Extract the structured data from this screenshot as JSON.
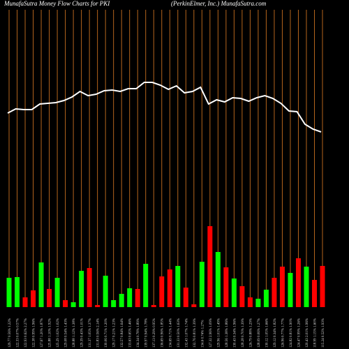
{
  "chart_data": {
    "type": "money-flow",
    "title": "MunafaSutra  Money Flow  Charts for PKI",
    "subtitle": "(PerkinElmer,  Inc.) MunafaSutra.com",
    "background": "#000000",
    "grid": true,
    "grid_color": "#b5651d",
    "categories": [
      "129.77 0.56% 1.22%",
      "122.33 0.07% 0.57%",
      "122.93 0.62% 2.27%",
      "122.38 0.99% 1.96%",
      "127.67 1.20% 1.87%",
      "125.88 1.10% 1.92%",
      "125.29 1.02% 1.02%",
      "129.08 0.54% 1.43%",
      "128.88 1.12% 1.38%",
      "129.39 0.43% 1.01%",
      "131.37 1.05% 1.37%",
      "131.83 0.56% 2.14%",
      "130.06 0.71% 1.20%",
      "129.17 0.21% 1.23%",
      "132.57 0.84% 1.64%",
      "133.63 0.65% 1.46%",
      "134.34 0.78% 1.89%",
      "139.97 0.94% 1.78%",
      "137.13 0.29% 0.95%",
      "136.69 0.96% 1.85%",
      "134.69 0.71% 1.44%",
      "131.33 0.50% 1.63%",
      "132.43 1.07% 1.74%",
      "132.76 0.81% 1.39%",
      "134.6 0.74% 1.27%",
      "127.32 2.96% 1.09%",
      "129.96 1.01% 1.49%",
      "128.56 1.38% 1.86%",
      "130.43 0.34% 1.96%",
      "128.28 0.70% 1.39%",
      "126.79 0.88% 1.29%",
      "128.09 0.06% 1.27%",
      "130.12 1.05% 1.66%",
      "129.12 0.34% 1.82%",
      "126.96 0.77% 1.77%",
      "124.82 0.81% 1.90%",
      "124.47 0.99% 1.26%",
      "120.43 2.01% 1.96%",
      "118.99 1.15% 1.60%",
      "115.24 0.52% 1.93%"
    ],
    "line": {
      "color": "#ffffff",
      "values": [
        338,
        344,
        343,
        343,
        351,
        352,
        353,
        356,
        361,
        369,
        363,
        365,
        370,
        371,
        369,
        373,
        373,
        382,
        382,
        378,
        372,
        377,
        367,
        369,
        375,
        351,
        357,
        354,
        360,
        359,
        355,
        360,
        363,
        359,
        352,
        341,
        340,
        322,
        315,
        311
      ]
    },
    "ylim": [
      0,
      500
    ],
    "bars": {
      "values": [
        42,
        43,
        14,
        24,
        64,
        26,
        42,
        10,
        7,
        52,
        56,
        3,
        45,
        10,
        19,
        27,
        26,
        62,
        3,
        44,
        54,
        59,
        28,
        4,
        65,
        116,
        79,
        57,
        41,
        30,
        14,
        12,
        25,
        42,
        58,
        49,
        70,
        58,
        39,
        59
      ],
      "colors": [
        "#00ff00",
        "#00ff00",
        "#ff0000",
        "#ff0000",
        "#00ff00",
        "#ff0000",
        "#00ff00",
        "#ff0000",
        "#00ff00",
        "#00ff00",
        "#ff0000",
        "#ff0000",
        "#00ff00",
        "#00ff00",
        "#00ff00",
        "#00ff00",
        "#ff0000",
        "#00ff00",
        "#ff0000",
        "#ff0000",
        "#ff0000",
        "#00ff00",
        "#ff0000",
        "#ff0000",
        "#00ff00",
        "#ff0000",
        "#00ff00",
        "#ff0000",
        "#00ff00",
        "#ff0000",
        "#ff0000",
        "#00ff00",
        "#00ff00",
        "#ff0000",
        "#ff0000",
        "#00ff00",
        "#ff0000",
        "#00ff00",
        "#ff0000",
        "#ff0000"
      ]
    },
    "y2lim": [
      0,
      440
    ]
  }
}
